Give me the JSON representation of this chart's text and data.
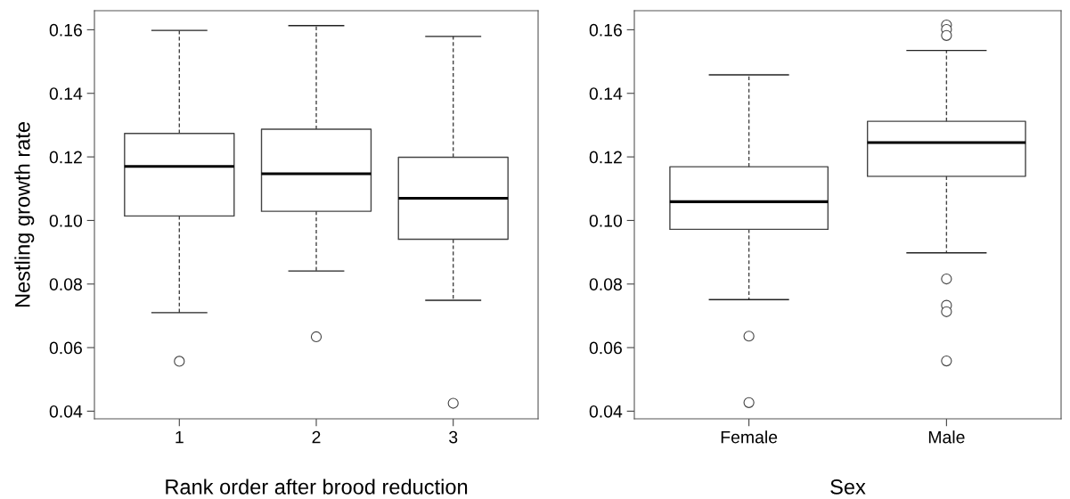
{
  "chart_data": [
    {
      "type": "box",
      "xlabel": "Rank order after brood reduction",
      "ylabel": "Nestling growth rate",
      "categories": [
        "1",
        "2",
        "3"
      ],
      "boxes": [
        {
          "low": 0.071,
          "q1": 0.1014,
          "median": 0.117,
          "q3": 0.1274,
          "high": 0.1598,
          "outliers": [
            0.0557
          ]
        },
        {
          "low": 0.0841,
          "q1": 0.1029,
          "median": 0.1147,
          "q3": 0.1287,
          "high": 0.1613,
          "outliers": [
            0.0634
          ]
        },
        {
          "low": 0.0749,
          "q1": 0.0941,
          "median": 0.107,
          "q3": 0.1199,
          "high": 0.1579,
          "outliers": [
            0.0425
          ]
        }
      ],
      "ylim": [
        0.0376,
        0.166
      ],
      "yticks": [
        {
          "value": 0.04,
          "label": "0.04"
        },
        {
          "value": 0.06,
          "label": "0.06"
        },
        {
          "value": 0.08,
          "label": "0.08"
        },
        {
          "value": 0.1,
          "label": "0.10"
        },
        {
          "value": 0.12,
          "label": "0.12"
        },
        {
          "value": 0.14,
          "label": "0.14"
        },
        {
          "value": 0.16,
          "label": "0.16"
        }
      ],
      "grid": false
    },
    {
      "type": "box",
      "xlabel": "Sex",
      "categories": [
        "Female",
        "Male"
      ],
      "boxes": [
        {
          "low": 0.0751,
          "q1": 0.0972,
          "median": 0.1059,
          "q3": 0.1169,
          "high": 0.1458,
          "outliers": [
            0.0636,
            0.0427
          ]
        },
        {
          "low": 0.0898,
          "q1": 0.1139,
          "median": 0.1245,
          "q3": 0.1312,
          "high": 0.1535,
          "outliers": [
            0.1615,
            0.1601,
            0.1582,
            0.0816,
            0.0733,
            0.0713,
            0.0558
          ]
        }
      ],
      "ylim": [
        0.0376,
        0.166
      ],
      "yticks": [
        {
          "value": 0.04,
          "label": "0.04"
        },
        {
          "value": 0.06,
          "label": "0.06"
        },
        {
          "value": 0.08,
          "label": "0.08"
        },
        {
          "value": 0.1,
          "label": "0.10"
        },
        {
          "value": 0.12,
          "label": "0.12"
        },
        {
          "value": 0.14,
          "label": "0.14"
        },
        {
          "value": 0.16,
          "label": "0.16"
        }
      ],
      "grid": false
    }
  ]
}
